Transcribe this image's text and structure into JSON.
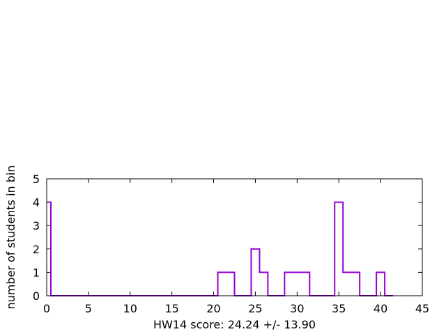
{
  "chart_data": {
    "type": "histogram",
    "xlabel": "HW14 score: 24.24 +/- 13.90",
    "ylabel": "number of students in bin",
    "xlim": [
      0,
      45
    ],
    "ylim": [
      0,
      5
    ],
    "x_ticks": [
      0,
      5,
      10,
      15,
      20,
      25,
      30,
      35,
      40,
      45
    ],
    "y_ticks": [
      0,
      1,
      2,
      3,
      4,
      5
    ],
    "grid": false,
    "legend": "none",
    "line_color": "#9400d3",
    "x": [
      0,
      1,
      2,
      3,
      4,
      5,
      6,
      7,
      8,
      9,
      10,
      11,
      12,
      13,
      14,
      15,
      16,
      17,
      18,
      19,
      20,
      21,
      22,
      23,
      24,
      25,
      26,
      27,
      28,
      29,
      30,
      31,
      32,
      33,
      34,
      35,
      36,
      37,
      38,
      39,
      40,
      41
    ],
    "values": [
      4,
      0,
      0,
      0,
      0,
      0,
      0,
      0,
      0,
      0,
      0,
      0,
      0,
      0,
      0,
      0,
      0,
      0,
      0,
      0,
      0,
      1,
      1,
      0,
      0,
      2,
      1,
      0,
      0,
      1,
      1,
      1,
      0,
      0,
      0,
      4,
      1,
      1,
      0,
      0,
      1,
      0
    ]
  }
}
